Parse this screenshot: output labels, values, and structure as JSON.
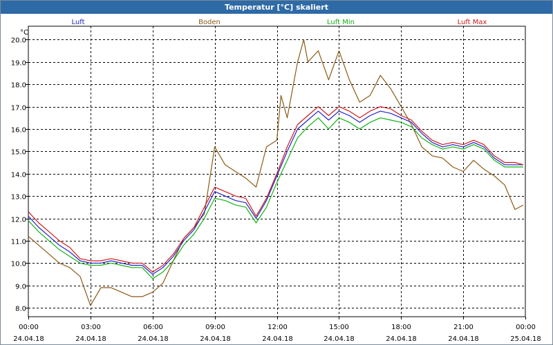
{
  "window": {
    "title": "Temperatur [°C] skaliert"
  },
  "chart_data": {
    "type": "line",
    "title": "Temperatur [°C] skaliert",
    "ylabel": "°C",
    "ylim": [
      7.6,
      20.6
    ],
    "xlim": [
      0,
      24
    ],
    "y_ticks": [
      "8.0",
      "9.0",
      "10.0",
      "11.0",
      "12.0",
      "13.0",
      "14.0",
      "15.0",
      "16.0",
      "17.0",
      "18.0",
      "19.0",
      "20.0"
    ],
    "y_tick_values": [
      8,
      9,
      10,
      11,
      12,
      13,
      14,
      15,
      16,
      17,
      18,
      19,
      20
    ],
    "x_ticks": [
      {
        "time": "00:00",
        "date": "24.04.18",
        "h": 0
      },
      {
        "time": "03:00",
        "date": "24.04.18",
        "h": 3
      },
      {
        "time": "06:00",
        "date": "24.04.18",
        "h": 6
      },
      {
        "time": "09:00",
        "date": "24.04.18",
        "h": 9
      },
      {
        "time": "12:00",
        "date": "24.04.18",
        "h": 12
      },
      {
        "time": "15:00",
        "date": "24.04.18",
        "h": 15
      },
      {
        "time": "18:00",
        "date": "24.04.18",
        "h": 18
      },
      {
        "time": "21:00",
        "date": "24.04.18",
        "h": 21
      },
      {
        "time": "00:00",
        "date": "25.04.18",
        "h": 24
      }
    ],
    "grid": true,
    "series": [
      {
        "name": "Luft",
        "color": "#2222cc",
        "x": [
          0,
          0.5,
          1,
          1.5,
          2,
          2.5,
          3,
          3.5,
          4,
          4.5,
          5,
          5.5,
          6,
          6.5,
          7,
          7.5,
          8,
          8.5,
          9,
          9.5,
          10,
          10.5,
          11,
          11.5,
          12,
          12.5,
          13,
          13.5,
          14,
          14.5,
          15,
          15.5,
          16,
          16.5,
          17,
          17.5,
          18,
          18.5,
          19,
          19.5,
          20,
          20.5,
          21,
          21.5,
          22,
          22.5,
          23,
          23.5,
          23.9
        ],
        "values": [
          12.1,
          11.6,
          11.2,
          10.8,
          10.5,
          10.1,
          10.0,
          10.0,
          10.1,
          10.0,
          9.9,
          9.9,
          9.5,
          9.8,
          10.3,
          11.0,
          11.5,
          12.3,
          13.2,
          13.0,
          12.8,
          12.7,
          12.0,
          12.8,
          13.9,
          15.0,
          16.0,
          16.4,
          16.8,
          16.4,
          16.8,
          16.6,
          16.3,
          16.6,
          16.8,
          16.7,
          16.5,
          16.3,
          15.8,
          15.4,
          15.2,
          15.3,
          15.2,
          15.4,
          15.2,
          14.7,
          14.4,
          14.4,
          14.4
        ]
      },
      {
        "name": "Boden",
        "color": "#8a5a14",
        "x": [
          0,
          0.5,
          1,
          1.5,
          2,
          2.5,
          3,
          3.5,
          4,
          4.5,
          5,
          5.5,
          6,
          6.5,
          7,
          7.5,
          8,
          8.5,
          9,
          9.5,
          10,
          10.5,
          11,
          11.5,
          12,
          12.2,
          12.5,
          13,
          13.3,
          13.5,
          14,
          14.5,
          15,
          15.5,
          16,
          16.5,
          17,
          17.5,
          18,
          18.5,
          19,
          19.5,
          20,
          20.5,
          21,
          21.5,
          22,
          22.5,
          23,
          23.5,
          23.9
        ],
        "values": [
          11.2,
          10.8,
          10.4,
          10.0,
          9.8,
          9.4,
          8.1,
          8.9,
          8.9,
          8.7,
          8.5,
          8.5,
          8.7,
          9.1,
          10.1,
          11.1,
          11.6,
          12.2,
          15.2,
          14.4,
          14.1,
          13.8,
          13.4,
          15.2,
          15.5,
          17.5,
          16.5,
          19.0,
          20.0,
          19.0,
          19.5,
          18.2,
          19.5,
          18.2,
          17.2,
          17.5,
          18.4,
          17.8,
          17.0,
          16.2,
          15.2,
          14.8,
          14.7,
          14.3,
          14.1,
          14.6,
          14.2,
          13.9,
          13.5,
          12.4,
          12.6
        ]
      },
      {
        "name": "Luft Min",
        "color": "#10b010",
        "x": [
          0,
          0.5,
          1,
          1.5,
          2,
          2.5,
          3,
          3.5,
          4,
          4.5,
          5,
          5.5,
          6,
          6.5,
          7,
          7.5,
          8,
          8.5,
          9,
          9.5,
          10,
          10.5,
          11,
          11.5,
          12,
          12.5,
          13,
          13.5,
          14,
          14.5,
          15,
          15.5,
          16,
          16.5,
          17,
          17.5,
          18,
          18.5,
          19,
          19.5,
          20,
          20.5,
          21,
          21.5,
          22,
          22.5,
          23,
          23.5,
          23.9
        ],
        "values": [
          11.9,
          11.4,
          11.0,
          10.6,
          10.3,
          10.0,
          9.9,
          9.9,
          10.0,
          9.9,
          9.8,
          9.8,
          9.3,
          9.6,
          10.1,
          10.8,
          11.3,
          12.0,
          12.9,
          12.8,
          12.6,
          12.5,
          11.8,
          12.5,
          13.6,
          14.6,
          15.6,
          16.1,
          16.5,
          16.0,
          16.5,
          16.3,
          16.0,
          16.3,
          16.5,
          16.4,
          16.3,
          16.1,
          15.6,
          15.3,
          15.1,
          15.2,
          15.1,
          15.3,
          15.1,
          14.6,
          14.3,
          14.3,
          14.3
        ]
      },
      {
        "name": "Luft Max",
        "color": "#cc1a1a",
        "x": [
          0,
          0.5,
          1,
          1.5,
          2,
          2.5,
          3,
          3.5,
          4,
          4.5,
          5,
          5.5,
          6,
          6.5,
          7,
          7.5,
          8,
          8.5,
          9,
          9.5,
          10,
          10.5,
          11,
          11.5,
          12,
          12.5,
          13,
          13.5,
          14,
          14.5,
          15,
          15.5,
          16,
          16.5,
          17,
          17.5,
          18,
          18.5,
          19,
          19.5,
          20,
          20.5,
          21,
          21.5,
          22,
          22.5,
          23,
          23.5,
          23.9
        ],
        "values": [
          12.3,
          11.8,
          11.4,
          11.0,
          10.7,
          10.2,
          10.1,
          10.1,
          10.2,
          10.1,
          10.0,
          10.0,
          9.6,
          9.9,
          10.4,
          11.1,
          11.6,
          12.5,
          13.4,
          13.2,
          13.0,
          12.9,
          12.1,
          12.9,
          14.0,
          15.2,
          16.2,
          16.6,
          17.0,
          16.6,
          17.0,
          16.8,
          16.5,
          16.8,
          17.0,
          16.9,
          16.6,
          16.4,
          15.9,
          15.5,
          15.3,
          15.4,
          15.3,
          15.5,
          15.3,
          14.8,
          14.5,
          14.5,
          14.4
        ]
      }
    ]
  }
}
